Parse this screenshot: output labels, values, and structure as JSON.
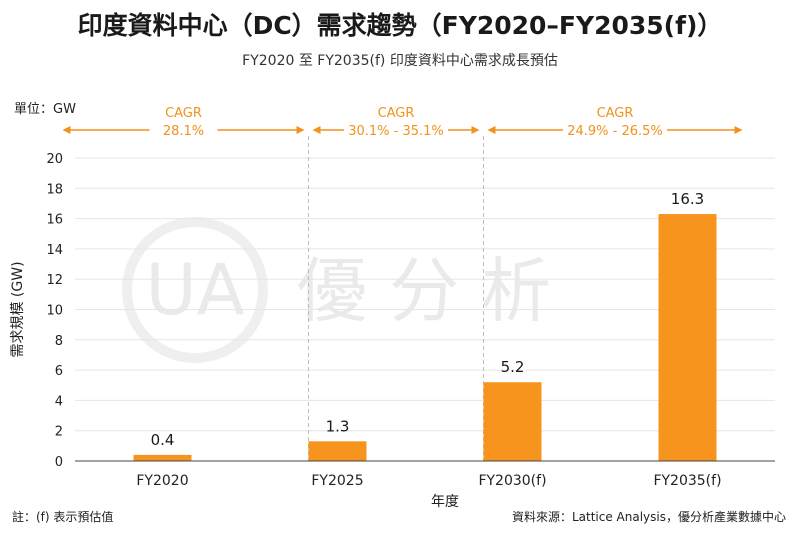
{
  "title": "印度資料中心（DC）需求趨勢（FY2020–FY2035(f)）",
  "subtitle": "FY2020 至 FY2035(f) 印度資料中心需求成長預估",
  "unit_label": "單位：GW",
  "footnote": "註：(f) 表示預估值",
  "source": "資料來源：Lattice Analysis，優分析產業數據中心",
  "watermark": {
    "logo_text": "UA",
    "text": "優分析"
  },
  "colors": {
    "bar": "#f7941d",
    "cagr": "#f0921c",
    "grid": "#e6e6e6",
    "divider": "#bdbdbd"
  },
  "chart_data": {
    "type": "bar",
    "categories": [
      "FY2020",
      "FY2025",
      "FY2030(f)",
      "FY2035(f)"
    ],
    "values": [
      0.4,
      1.3,
      5.2,
      16.3
    ],
    "data_labels": [
      "0.4",
      "1.3",
      "5.2",
      "16.3"
    ],
    "xlabel": "年度",
    "ylabel": "需求規模 (GW)",
    "ylim": [
      0,
      20
    ],
    "yticks": [
      0,
      2,
      4,
      6,
      8,
      10,
      12,
      14,
      16,
      18,
      20
    ],
    "grid": true,
    "annotations": [
      {
        "label": "CAGR",
        "value": "28.1%",
        "from": "FY2020",
        "to": "FY2025"
      },
      {
        "label": "CAGR",
        "value": "30.1% - 35.1%",
        "from": "FY2025",
        "to": "FY2030(f)"
      },
      {
        "label": "CAGR",
        "value": "24.9% - 26.5%",
        "from": "FY2030(f)",
        "to": "FY2035(f)"
      }
    ]
  }
}
